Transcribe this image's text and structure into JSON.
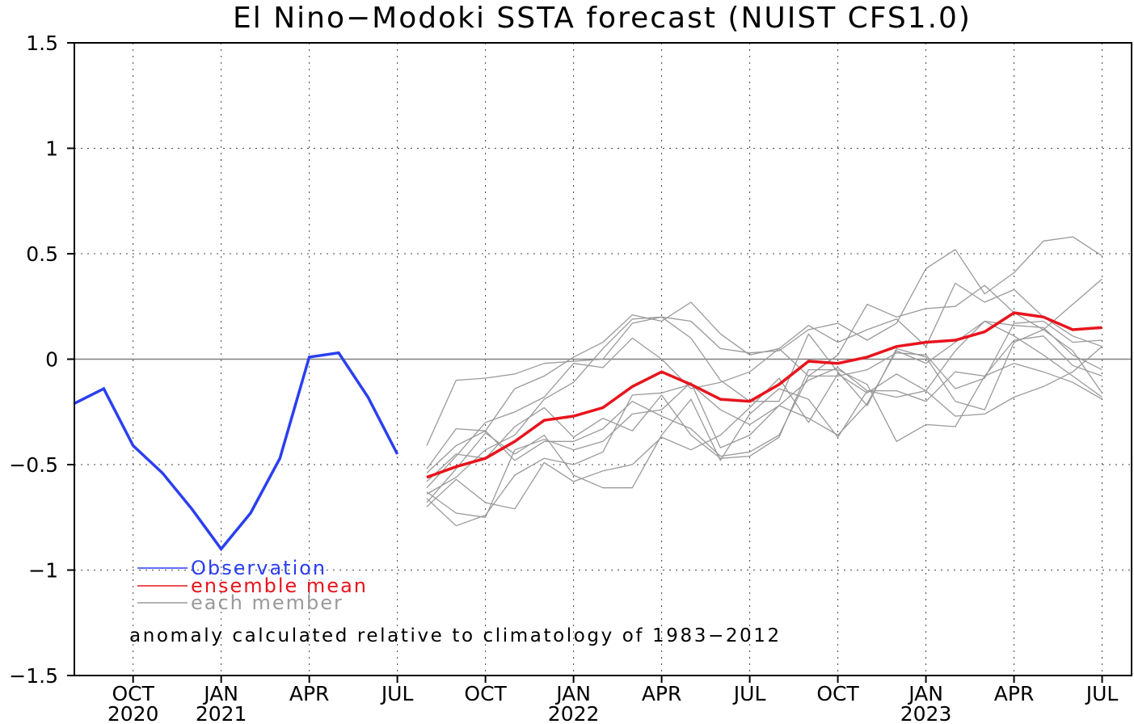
{
  "chart_data": {
    "type": "line",
    "title": "El Nino−Modoki SSTA forecast (NUIST CFS1.0)",
    "xlabel": "",
    "ylabel": "",
    "ylim": [
      -1.5,
      1.5
    ],
    "yticks": [
      1.5,
      1,
      0.5,
      0,
      -0.5,
      -1,
      -1.5
    ],
    "ytick_labels": [
      "1.5",
      "1",
      "0.5",
      "0",
      "−0.5",
      "−1",
      "−1.5"
    ],
    "x_months": [
      "2020-08",
      "2020-09",
      "2020-10",
      "2020-11",
      "2020-12",
      "2021-01",
      "2021-02",
      "2021-03",
      "2021-04",
      "2021-05",
      "2021-06",
      "2021-07",
      "2021-08",
      "2021-09",
      "2021-10",
      "2021-11",
      "2021-12",
      "2022-01",
      "2022-02",
      "2022-03",
      "2022-04",
      "2022-05",
      "2022-06",
      "2022-07",
      "2022-08",
      "2022-09",
      "2022-10",
      "2022-11",
      "2022-12",
      "2023-01",
      "2023-02",
      "2023-03",
      "2023-04",
      "2023-05",
      "2023-06",
      "2023-07"
    ],
    "xticks": [
      {
        "month": "2020-10",
        "label": "OCT",
        "year": "2020"
      },
      {
        "month": "2021-01",
        "label": "JAN",
        "year": "2021"
      },
      {
        "month": "2021-04",
        "label": "APR",
        "year": ""
      },
      {
        "month": "2021-07",
        "label": "JUL",
        "year": ""
      },
      {
        "month": "2021-10",
        "label": "OCT",
        "year": ""
      },
      {
        "month": "2022-01",
        "label": "JAN",
        "year": "2022"
      },
      {
        "month": "2022-04",
        "label": "APR",
        "year": ""
      },
      {
        "month": "2022-07",
        "label": "JUL",
        "year": ""
      },
      {
        "month": "2022-10",
        "label": "OCT",
        "year": ""
      },
      {
        "month": "2023-01",
        "label": "JAN",
        "year": "2023"
      },
      {
        "month": "2023-04",
        "label": "APR",
        "year": ""
      },
      {
        "month": "2023-07",
        "label": "JUL",
        "year": ""
      }
    ],
    "grid": true,
    "zero_line": true,
    "series": [
      {
        "name": "Observation",
        "color": "#2b3ff0",
        "months": [
          "2020-08",
          "2020-09",
          "2020-10",
          "2020-11",
          "2020-12",
          "2021-01",
          "2021-02",
          "2021-03",
          "2021-04",
          "2021-05",
          "2021-06",
          "2021-07"
        ],
        "values": [
          -0.21,
          -0.14,
          -0.41,
          -0.54,
          -0.71,
          -0.9,
          -0.73,
          -0.47,
          0.01,
          0.03,
          -0.18,
          -0.45
        ]
      },
      {
        "name": "ensemble mean",
        "color": "#e8141c",
        "months": [
          "2021-08",
          "2021-09",
          "2021-10",
          "2021-11",
          "2021-12",
          "2022-01",
          "2022-02",
          "2022-03",
          "2022-04",
          "2022-05",
          "2022-06",
          "2022-07",
          "2022-08",
          "2022-09",
          "2022-10",
          "2022-11",
          "2022-12",
          "2023-01",
          "2023-02",
          "2023-03",
          "2023-04",
          "2023-05",
          "2023-06",
          "2023-07"
        ],
        "values": [
          -0.56,
          -0.51,
          -0.47,
          -0.39,
          -0.29,
          -0.27,
          -0.23,
          -0.13,
          -0.06,
          -0.12,
          -0.19,
          -0.2,
          -0.12,
          -0.01,
          -0.02,
          0.01,
          0.06,
          0.08,
          0.09,
          0.13,
          0.22,
          0.2,
          0.14,
          0.15
        ]
      }
    ],
    "members": {
      "name": "each member",
      "color": "#9a9a9a",
      "months": [
        "2021-08",
        "2021-09",
        "2021-10",
        "2021-11",
        "2021-12",
        "2022-01",
        "2022-02",
        "2022-03",
        "2022-04",
        "2022-05",
        "2022-06",
        "2022-07",
        "2022-08",
        "2022-09",
        "2022-10",
        "2022-11",
        "2022-12",
        "2023-01",
        "2023-02",
        "2023-03",
        "2023-04",
        "2023-05",
        "2023-06",
        "2023-07"
      ],
      "runs": [
        [
          -0.41,
          -0.1,
          -0.09,
          -0.07,
          -0.02,
          -0.01,
          0.0,
          0.17,
          0.2,
          0.18,
          0.05,
          0.03,
          0.04,
          0.14,
          0.17,
          0.09,
          0.17,
          0.43,
          0.52,
          0.31,
          0.41,
          0.56,
          0.58,
          0.49
        ],
        [
          -0.52,
          -0.33,
          -0.34,
          -0.14,
          -0.08,
          0.01,
          0.08,
          0.21,
          0.18,
          0.27,
          0.12,
          0.02,
          0.05,
          0.16,
          0.08,
          0.14,
          0.19,
          0.06,
          0.36,
          0.27,
          0.33,
          0.2,
          0.11,
          0.06
        ],
        [
          -0.61,
          -0.46,
          -0.3,
          -0.25,
          -0.18,
          -0.02,
          -0.04,
          0.1,
          0.0,
          -0.14,
          -0.11,
          -0.06,
          0.05,
          -0.08,
          0.02,
          0.26,
          0.2,
          0.24,
          0.25,
          0.35,
          0.22,
          0.14,
          0.04,
          -0.16
        ],
        [
          -0.64,
          -0.56,
          -0.43,
          -0.36,
          -0.19,
          -0.11,
          0.05,
          0.19,
          0.2,
          0.1,
          -0.1,
          -0.2,
          -0.2,
          0.12,
          -0.06,
          -0.22,
          0.05,
          0.01,
          -0.2,
          -0.24,
          0.08,
          0.14,
          0.26,
          0.38
        ],
        [
          -0.58,
          -0.45,
          -0.47,
          -0.32,
          -0.23,
          -0.37,
          -0.28,
          -0.34,
          -0.17,
          -0.36,
          -0.47,
          -0.46,
          -0.37,
          -0.05,
          -0.05,
          -0.12,
          -0.39,
          -0.31,
          -0.32,
          -0.08,
          -0.02,
          -0.06,
          -0.11,
          -0.19
        ],
        [
          -0.54,
          -0.41,
          -0.34,
          -0.48,
          -0.39,
          -0.39,
          -0.33,
          -0.2,
          -0.27,
          -0.33,
          -0.46,
          -0.44,
          -0.36,
          -0.08,
          -0.08,
          -0.05,
          0.03,
          0.02,
          -0.14,
          -0.09,
          0.17,
          0.18,
          0.08,
          0.09
        ],
        [
          -0.66,
          -0.79,
          -0.74,
          -0.55,
          -0.47,
          -0.5,
          -0.44,
          -0.17,
          -0.16,
          -0.12,
          -0.24,
          -0.31,
          -0.22,
          -0.28,
          -0.36,
          -0.21,
          0.04,
          -0.02,
          0.08,
          0.18,
          0.11,
          0.02,
          -0.08,
          -0.18
        ],
        [
          -0.63,
          -0.73,
          -0.75,
          -0.43,
          -0.38,
          -0.43,
          -0.39,
          -0.26,
          -0.24,
          -0.11,
          -0.42,
          -0.36,
          -0.22,
          -0.1,
          -0.04,
          -0.15,
          -0.15,
          -0.2,
          -0.06,
          -0.08,
          0.09,
          0.11,
          -0.03,
          -0.08
        ],
        [
          -0.7,
          -0.57,
          -0.68,
          -0.71,
          -0.49,
          -0.58,
          -0.53,
          -0.5,
          -0.37,
          -0.43,
          -0.36,
          -0.23,
          -0.09,
          -0.3,
          -0.07,
          -0.16,
          -0.07,
          -0.15,
          0.04,
          0.18,
          0.16,
          0.15,
          0.02,
          -0.05
        ],
        [
          -0.68,
          -0.52,
          -0.35,
          -0.45,
          -0.36,
          -0.55,
          -0.61,
          -0.61,
          -0.36,
          -0.19,
          -0.48,
          -0.26,
          -0.14,
          -0.19,
          -0.37,
          -0.15,
          -0.18,
          -0.15,
          -0.27,
          -0.26,
          -0.18,
          -0.13,
          -0.06,
          0.06
        ]
      ]
    },
    "legend": {
      "placement": "bottom-left",
      "entries": [
        {
          "label": "Observation",
          "color": "#2b3ff0"
        },
        {
          "label": "ensemble mean",
          "color": "#e8141c"
        },
        {
          "label": "each member",
          "color": "#9a9a9a"
        }
      ]
    },
    "annotation": "anomaly calculated relative to climatology of 1983−2012"
  }
}
